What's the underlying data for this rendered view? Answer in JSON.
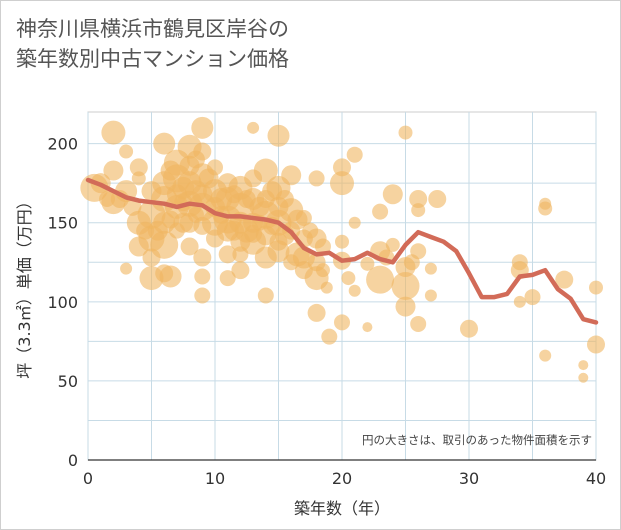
{
  "title_line1": "神奈川県横浜市鶴見区岸谷の",
  "title_line2": "築年数別中古マンション価格",
  "chart_data": {
    "type": "scatter",
    "title": "神奈川県横浜市鶴見区岸谷の築年数別中古マンション価格",
    "xlabel": "築年数（年）",
    "ylabel": "坪（3.3㎡）単価（万円）",
    "note": "円の大きさは、取引のあった物件面積を示す",
    "xlim": [
      0,
      40
    ],
    "ylim": [
      0,
      220
    ],
    "xticks": [
      0,
      10,
      20,
      30,
      40
    ],
    "yticks": [
      0,
      50,
      100,
      150,
      200
    ],
    "grid": true,
    "colors": {
      "bubble": "#f0b660",
      "line": "#d26b58"
    },
    "series": [
      {
        "type": "bubble",
        "points": [
          [
            0.5,
            172,
            14
          ],
          [
            1,
            175,
            10
          ],
          [
            1.5,
            165,
            8
          ],
          [
            2,
            163,
            12
          ],
          [
            2,
            183,
            10
          ],
          [
            2,
            207,
            12
          ],
          [
            2.5,
            165,
            9
          ],
          [
            3,
            195,
            7
          ],
          [
            3,
            170,
            11
          ],
          [
            3,
            121,
            6
          ],
          [
            3.5,
            160,
            9
          ],
          [
            4,
            185,
            9
          ],
          [
            4,
            178,
            7
          ],
          [
            4,
            150,
            12
          ],
          [
            4,
            135,
            10
          ],
          [
            4.5,
            145,
            9
          ],
          [
            5,
            170,
            10
          ],
          [
            5,
            155,
            14
          ],
          [
            5,
            140,
            13
          ],
          [
            5,
            128,
            9
          ],
          [
            5,
            115,
            12
          ],
          [
            5.5,
            145,
            10
          ],
          [
            6,
            200,
            11
          ],
          [
            6,
            175,
            12
          ],
          [
            6,
            165,
            13
          ],
          [
            6,
            150,
            11
          ],
          [
            6,
            136,
            14
          ],
          [
            6,
            118,
            9
          ],
          [
            6.5,
            183,
            10
          ],
          [
            6.5,
            152,
            9
          ],
          [
            6.5,
            116,
            11
          ],
          [
            7,
            188,
            13
          ],
          [
            7,
            178,
            14
          ],
          [
            7,
            168,
            10
          ],
          [
            7,
            160,
            12
          ],
          [
            7,
            145,
            8
          ],
          [
            7.5,
            172,
            11
          ],
          [
            7.5,
            163,
            9
          ],
          [
            7.5,
            150,
            10
          ],
          [
            8,
            198,
            12
          ],
          [
            8,
            186,
            10
          ],
          [
            8,
            175,
            12
          ],
          [
            8,
            162,
            13
          ],
          [
            8,
            150,
            10
          ],
          [
            8,
            135,
            9
          ],
          [
            8.5,
            190,
            9
          ],
          [
            8.5,
            170,
            11
          ],
          [
            8.5,
            155,
            8
          ],
          [
            9,
            210,
            11
          ],
          [
            9,
            195,
            9
          ],
          [
            9,
            180,
            12
          ],
          [
            9,
            168,
            10
          ],
          [
            9,
            160,
            14
          ],
          [
            9,
            148,
            9
          ],
          [
            9,
            128,
            9
          ],
          [
            9,
            116,
            8
          ],
          [
            9,
            104,
            8
          ],
          [
            9.5,
            178,
            10
          ],
          [
            10,
            185,
            8
          ],
          [
            10,
            170,
            12
          ],
          [
            10,
            160,
            10
          ],
          [
            10,
            150,
            13
          ],
          [
            10,
            140,
            9
          ],
          [
            10.5,
            165,
            11
          ],
          [
            10.5,
            155,
            9
          ],
          [
            11,
            175,
            10
          ],
          [
            11,
            165,
            12
          ],
          [
            11,
            152,
            14
          ],
          [
            11,
            145,
            11
          ],
          [
            11,
            130,
            9
          ],
          [
            11,
            115,
            8
          ],
          [
            11.5,
            168,
            9
          ],
          [
            11.5,
            145,
            10
          ],
          [
            12,
            172,
            12
          ],
          [
            12,
            160,
            14
          ],
          [
            12,
            150,
            11
          ],
          [
            12,
            138,
            10
          ],
          [
            12,
            130,
            8
          ],
          [
            12,
            120,
            9
          ],
          [
            12.5,
            165,
            9
          ],
          [
            12.5,
            145,
            12
          ],
          [
            13,
            210,
            6
          ],
          [
            13,
            178,
            9
          ],
          [
            13,
            165,
            11
          ],
          [
            13,
            150,
            10
          ],
          [
            13,
            143,
            9
          ],
          [
            13,
            138,
            13
          ],
          [
            13.5,
            160,
            10
          ],
          [
            13.5,
            150,
            8
          ],
          [
            14,
            183,
            12
          ],
          [
            14,
            165,
            9
          ],
          [
            14,
            155,
            14
          ],
          [
            14,
            142,
            10
          ],
          [
            14,
            128,
            11
          ],
          [
            14,
            104,
            8
          ],
          [
            14.5,
            170,
            10
          ],
          [
            14.5,
            148,
            9
          ],
          [
            15,
            205,
            11
          ],
          [
            15,
            172,
            12
          ],
          [
            15,
            160,
            10
          ],
          [
            15,
            150,
            13
          ],
          [
            15,
            138,
            9
          ],
          [
            15,
            132,
            11
          ],
          [
            15.5,
            165,
            9
          ],
          [
            15.5,
            142,
            10
          ],
          [
            16,
            180,
            10
          ],
          [
            16,
            158,
            12
          ],
          [
            16,
            145,
            9
          ],
          [
            16,
            125,
            8
          ],
          [
            16.5,
            152,
            10
          ],
          [
            16.5,
            130,
            12
          ],
          [
            17,
            153,
            8
          ],
          [
            17,
            140,
            9
          ],
          [
            17,
            128,
            11
          ],
          [
            17,
            120,
            9
          ],
          [
            17.5,
            145,
            8
          ],
          [
            18,
            178,
            8
          ],
          [
            18,
            140,
            10
          ],
          [
            18,
            125,
            9
          ],
          [
            18,
            115,
            12
          ],
          [
            18,
            93,
            9
          ],
          [
            18.5,
            135,
            8
          ],
          [
            18.5,
            120,
            7
          ],
          [
            18.8,
            109,
            6
          ],
          [
            19,
            78,
            8
          ],
          [
            20,
            185,
            9
          ],
          [
            20,
            175,
            12
          ],
          [
            20,
            138,
            7
          ],
          [
            20,
            126,
            9
          ],
          [
            20,
            87,
            8
          ],
          [
            20.5,
            115,
            7
          ],
          [
            21,
            193,
            8
          ],
          [
            21,
            150,
            6
          ],
          [
            21,
            107,
            6
          ],
          [
            22,
            84,
            5
          ],
          [
            22,
            124,
            7
          ],
          [
            23,
            157,
            8
          ],
          [
            23,
            132,
            10
          ],
          [
            23,
            114,
            14
          ],
          [
            23.5,
            128,
            8
          ],
          [
            24,
            136,
            7
          ],
          [
            24,
            168,
            10
          ],
          [
            25,
            207,
            7
          ],
          [
            25,
            122,
            10
          ],
          [
            25,
            110,
            14
          ],
          [
            25,
            97,
            10
          ],
          [
            25.5,
            125,
            8
          ],
          [
            26,
            165,
            9
          ],
          [
            26,
            158,
            7
          ],
          [
            26,
            132,
            8
          ],
          [
            26,
            86,
            8
          ],
          [
            27,
            121,
            6
          ],
          [
            27,
            104,
            6
          ],
          [
            27.5,
            165,
            9
          ],
          [
            30,
            83,
            9
          ],
          [
            34,
            125,
            8
          ],
          [
            34,
            120,
            9
          ],
          [
            34,
            100,
            6
          ],
          [
            35,
            103,
            8
          ],
          [
            36,
            162,
            6
          ],
          [
            36,
            159,
            7
          ],
          [
            36,
            66,
            6
          ],
          [
            37.5,
            114,
            9
          ],
          [
            39,
            60,
            5
          ],
          [
            39,
            52,
            5
          ],
          [
            40,
            109,
            7
          ],
          [
            40,
            73,
            9
          ]
        ]
      },
      {
        "type": "line",
        "x": [
          0,
          1,
          2,
          3,
          4,
          5,
          6,
          7,
          8,
          9,
          10,
          11,
          12,
          13,
          14,
          15,
          16,
          17,
          18,
          19,
          20,
          21,
          22,
          23,
          24,
          25,
          26,
          27,
          28,
          29,
          30,
          31,
          32,
          33,
          34,
          35,
          36,
          37,
          38,
          39,
          40
        ],
        "y": [
          177,
          174,
          170,
          166,
          164,
          163,
          162,
          160,
          162,
          161,
          156,
          154,
          154,
          153,
          152,
          150,
          144,
          134,
          130,
          131,
          126,
          127,
          131,
          127,
          125,
          136,
          144,
          141,
          138,
          132,
          118,
          103,
          103,
          105,
          116,
          117,
          120,
          108,
          102,
          89,
          87
        ]
      }
    ]
  }
}
